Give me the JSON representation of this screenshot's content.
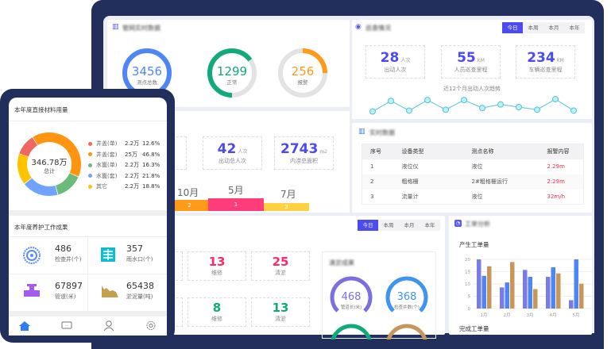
{
  "pipe": {
    "title": "管网实时数据",
    "gauges": [
      {
        "value": "3456",
        "label": "测点总数",
        "color": "#4f86f7",
        "fraction": 1
      },
      {
        "value": "1299",
        "label": "正常",
        "color": "#12a97b",
        "fraction": 0.65
      },
      {
        "value": "256",
        "label": "报警",
        "color": "#ff9a1a",
        "fraction": 0.25
      }
    ]
  },
  "patrol": {
    "title": "巡查情况",
    "tabs": [
      "今日",
      "本周",
      "本月",
      "本年"
    ],
    "active_tab": "今日",
    "stats": [
      {
        "value": "28",
        "unit": "人次",
        "label": "出动人次"
      },
      {
        "value": "55",
        "unit": "KM",
        "label": "人员巡查里程"
      },
      {
        "value": "234",
        "unit": "KM",
        "label": "车辆巡查里程"
      }
    ],
    "trend_title": "近12个月出动人次趋势",
    "trend_values": [
      2,
      8,
      2.5,
      8.5,
      3,
      8.5,
      4,
      6,
      4.5,
      3,
      9,
      2.5
    ],
    "trend_color": "#4fc6d8"
  },
  "dredge": {
    "stats": [
      {
        "value": "42",
        "unit": "人次",
        "label": "出动总人次"
      },
      {
        "value": "2743",
        "unit": "m2",
        "label": "内涝总面积"
      }
    ],
    "bars": [
      {
        "month": "10月",
        "value": "2",
        "color": "#ff9a1a"
      },
      {
        "month": "5月",
        "value": "1",
        "color": "#ff3d7a"
      },
      {
        "month": "7月",
        "value": "3",
        "color": "#ffd040"
      }
    ]
  },
  "realtime": {
    "title": "实时数据",
    "headers": [
      "序号",
      "设备类型",
      "测点名称",
      "报警内容"
    ],
    "rows": [
      [
        "1",
        "液位仪",
        "液位",
        "2.29m"
      ],
      [
        "2",
        "粗格栅",
        "2#粗格栅运行",
        "2.29m"
      ],
      [
        "3",
        "流量计",
        "液位",
        "32m/h"
      ]
    ],
    "alarm_color": "#ff2a4f"
  },
  "maint": {
    "tabs": [
      "今日",
      "本周",
      "本月",
      "本年"
    ],
    "active_tab": "今日",
    "row1": [
      {
        "value": "13",
        "label": "维修",
        "color": "#ff2a6a"
      },
      {
        "value": "25",
        "label": "清淤",
        "color": "#ff2a6a"
      }
    ],
    "row2": [
      {
        "value": "8",
        "label": "维修",
        "color": "#12a97b"
      },
      {
        "value": "13",
        "label": "清淤",
        "color": "#12a97b"
      }
    ],
    "result_title": "清淤成果",
    "arcs": [
      {
        "value": "468",
        "label": "管道长(米)",
        "color": "#7b6fe0"
      },
      {
        "value": "368",
        "label": "检查井数(个)",
        "color": "#3d95ef"
      }
    ]
  },
  "orders": {
    "title": "工单分析",
    "chart_data": {
      "type": "bar",
      "title": "产生工单量",
      "categories": [
        "1月",
        "2月",
        "3月",
        "4月",
        "5月"
      ],
      "ylim": [
        0,
        20
      ],
      "yticks": [
        "0",
        "5",
        "10",
        "15",
        "20"
      ],
      "grid": true,
      "series": [
        {
          "values": [
            20,
            8.6,
            15.7,
            12.9,
            3.4
          ],
          "color": "#7b7be8"
        },
        {
          "values": [
            13.3,
            10.6,
            12.9,
            16.8,
            20
          ],
          "color": "#4f86f7"
        },
        {
          "values": [
            17.2,
            18.9,
            7.9,
            14.3,
            10.1
          ],
          "color": "#c8955a"
        }
      ]
    },
    "second_title": "完成工单量"
  },
  "phone": {
    "material_title": "本年度直接材料用量",
    "total": "346.78万",
    "total_label": "总计",
    "legend": [
      {
        "name": "井盖(单)",
        "amount": "2.2万",
        "pct": "12.6%",
        "value": 12.6,
        "color": "#f0675f"
      },
      {
        "name": "井盖(套)",
        "amount": "25万",
        "pct": "46.8%",
        "value": 46.8,
        "color": "#ff9410"
      },
      {
        "name": "水篦(单)",
        "amount": "2.2万",
        "pct": "16.3%",
        "value": 16.3,
        "color": "#6dbb7a"
      },
      {
        "name": "水篦(套)",
        "amount": "2.2万",
        "pct": "21.8%",
        "value": 21.8,
        "color": "#70a2ff"
      },
      {
        "name": "其它",
        "amount": "2.2万",
        "pct": "18.8%",
        "value": 18.8,
        "color": "#ffc300"
      }
    ],
    "work_title": "本年度养护工作成果",
    "work": [
      {
        "value": "486",
        "label": "检查井(个)",
        "icon": "manhole-icon"
      },
      {
        "value": "357",
        "label": "雨水口(个)",
        "icon": "grate-icon"
      },
      {
        "value": "67897",
        "label": "管道(米)",
        "icon": "pipe-icon"
      },
      {
        "value": "65438",
        "label": "淤泥量(吨)",
        "icon": "sludge-icon"
      }
    ],
    "nav": [
      {
        "label": "首页",
        "icon": "home-icon"
      },
      {
        "label": "",
        "icon": "chat-icon"
      },
      {
        "label": "",
        "icon": "user-icon"
      },
      {
        "label": "",
        "icon": "gear-icon"
      }
    ]
  }
}
